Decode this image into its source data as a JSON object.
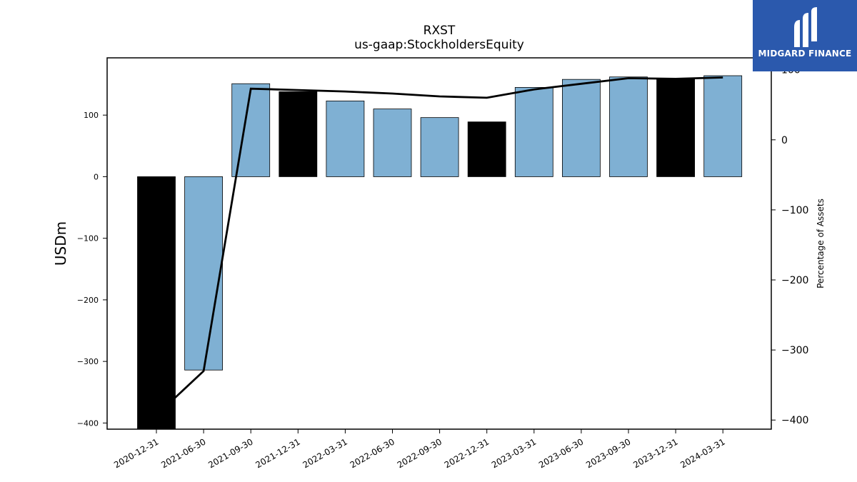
{
  "chart_data": {
    "type": "bar",
    "title": "RXST",
    "subtitle": "us-gaap:StockholdersEquity",
    "ylabel": "USDm",
    "y2label": "Percentage of Assets",
    "ylim": [
      -410,
      193
    ],
    "y2lim": [
      -413,
      117
    ],
    "yticks": [
      -400,
      -300,
      -200,
      -100,
      0,
      100
    ],
    "y2ticks": [
      -400,
      -300,
      -200,
      -100,
      0,
      100
    ],
    "categories": [
      "2020-12-31",
      "2021-06-30",
      "2021-09-30",
      "2021-12-31",
      "2022-03-31",
      "2022-06-30",
      "2022-09-30",
      "2022-12-31",
      "2023-03-31",
      "2023-06-30",
      "2023-09-30",
      "2023-12-31",
      "2024-03-31"
    ],
    "values": [
      -410,
      -314,
      151,
      138,
      123,
      110,
      96,
      89,
      145,
      158,
      162,
      160,
      164
    ],
    "bar_colors": [
      "#000000",
      "#7fb0d3",
      "#7fb0d3",
      "#000000",
      "#7fb0d3",
      "#7fb0d3",
      "#7fb0d3",
      "#000000",
      "#7fb0d3",
      "#7fb0d3",
      "#7fb0d3",
      "#000000",
      "#7fb0d3"
    ],
    "line": {
      "name": "Percentage of Assets",
      "values": [
        -393,
        -330,
        73,
        71,
        69,
        66,
        62,
        60,
        72,
        80,
        88,
        87,
        89
      ]
    },
    "grid": false
  },
  "logo": {
    "text": "MIDGARD FINANCE",
    "color": "#2b59ad"
  }
}
